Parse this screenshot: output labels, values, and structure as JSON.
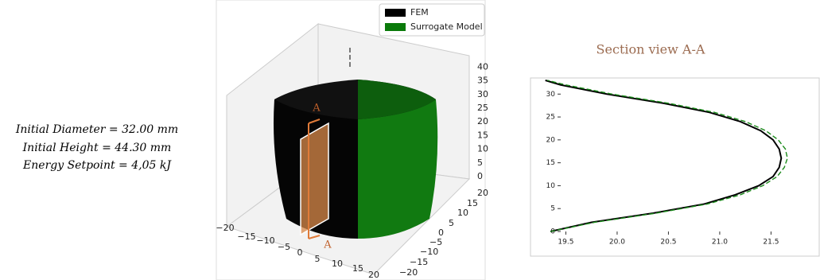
{
  "parameters": [
    "Initial Diameter = 32.00 mm",
    "Initial Height = 44.30 mm",
    "Energy Setpoint = 4,05 kJ"
  ],
  "plot_3d": {
    "legend": [
      "FEM",
      "Surrogate Model"
    ],
    "section_label": "A",
    "zticks": [
      "0",
      "5",
      "10",
      "15",
      "20",
      "25",
      "30",
      "35",
      "40"
    ],
    "xticks": [
      "−20",
      "−15",
      "−10",
      "−5",
      "0",
      "5",
      "10",
      "15",
      "20"
    ],
    "yticks": [
      "20",
      "15",
      "10",
      "5",
      "0",
      "−5",
      "−10",
      "−15",
      "−20"
    ]
  },
  "chart_data": {
    "type": "line",
    "title": "Section view A-A",
    "y": [
      0,
      2,
      4,
      6,
      8,
      10,
      12,
      14,
      16,
      18,
      20,
      22,
      24,
      26,
      28,
      30,
      32,
      33
    ],
    "series": [
      {
        "name": "FEM",
        "color": "#000000",
        "values": [
          19.35,
          19.75,
          20.35,
          20.85,
          21.15,
          21.38,
          21.52,
          21.58,
          21.6,
          21.58,
          21.52,
          21.4,
          21.2,
          20.9,
          20.45,
          19.9,
          19.45,
          19.3
        ]
      },
      {
        "name": "Surrogate Model",
        "color": "#1a8a1a",
        "values": [
          19.35,
          19.78,
          20.38,
          20.88,
          21.2,
          21.42,
          21.56,
          21.63,
          21.66,
          21.64,
          21.57,
          21.45,
          21.25,
          20.95,
          20.5,
          19.95,
          19.5,
          19.32
        ]
      }
    ],
    "xlim": [
      19.45,
      21.9
    ],
    "ylim": [
      0,
      33
    ],
    "xticks": [
      19.5,
      {
        "value": 20,
        "label": "20.0"
      },
      20.5,
      {
        "value": 21,
        "label": "21.0"
      },
      21.5
    ],
    "yticks": [
      0,
      5,
      10,
      15,
      20,
      25,
      30
    ]
  }
}
